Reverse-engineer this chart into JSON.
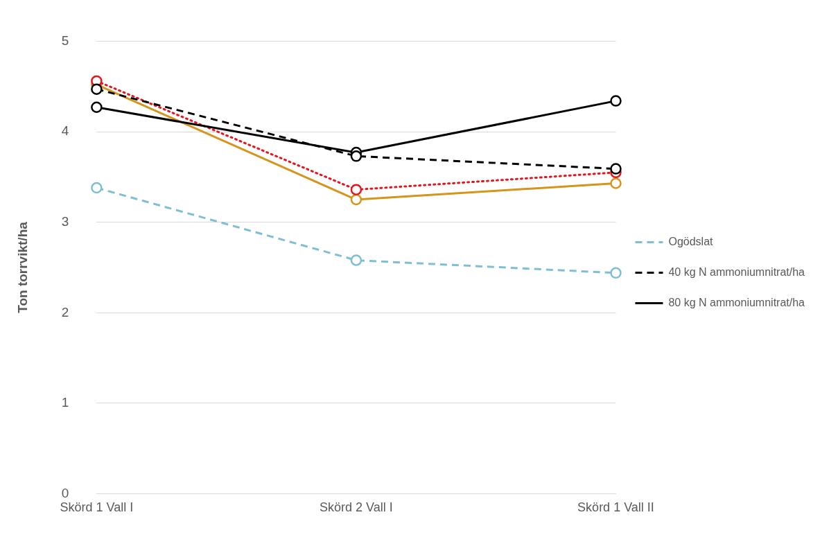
{
  "chart_data": {
    "type": "line",
    "ylabel": "Ton torrvikt/ha",
    "categories": [
      "Skörd 1 Vall I",
      "Skörd 2 Vall I",
      "Skörd 1 Vall II"
    ],
    "series": [
      {
        "name": "Ogödslat",
        "color": "#7fbfd3",
        "values": [
          3.38,
          2.58,
          2.44
        ],
        "line_style": "dashed"
      },
      {
        "name": "40 kg N ammoniumnitrat/ha",
        "color": "#000000",
        "values": [
          4.47,
          3.73,
          3.59
        ],
        "line_style": "dashed"
      },
      {
        "name": "80 kg N ammoniumnitrat/ha",
        "color": "#000000",
        "values": [
          4.27,
          3.77,
          4.34
        ],
        "line_style": "solid"
      },
      {
        "color": "#e8141b",
        "values": [
          4.56,
          3.36,
          3.55
        ],
        "line_style": "dotted"
      },
      {
        "color": "#d4951a",
        "values": [
          4.52,
          3.25,
          3.43
        ],
        "line_style": "solid"
      }
    ],
    "ylim": [
      0,
      5
    ],
    "yticks": [
      0,
      1,
      2,
      3,
      4,
      5
    ],
    "grid": "y",
    "legend": "right",
    "marker": "circle"
  }
}
